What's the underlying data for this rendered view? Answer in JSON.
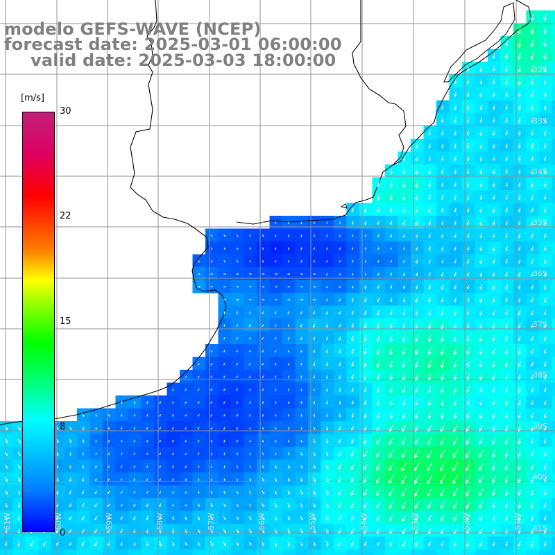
{
  "title": {
    "line1": "modelo GEFS-WAVE (NCEP)",
    "line2": "forecast date: 2025-03-01 06:00:00",
    "line3": "valid date: 2025-03-03 18:00:00"
  },
  "colorbar": {
    "unit": "[m/s]",
    "ticks": [
      "30",
      "22",
      "15",
      "8",
      "0"
    ],
    "colors": [
      "#0000ff",
      "#0080ff",
      "#00ffff",
      "#00ff80",
      "#00ff00",
      "#ffff00",
      "#ff8000",
      "#ff0000",
      "#c0207a"
    ]
  },
  "lat_labels": [
    "32S",
    "33S",
    "34S",
    "35S",
    "36S",
    "37S",
    "38S",
    "39S",
    "40S",
    "41S"
  ],
  "lon_labels": [
    "61W",
    "60W",
    "59W",
    "58W",
    "57W",
    "56W",
    "55W",
    "54W",
    "53W",
    "52W",
    "51W"
  ]
}
